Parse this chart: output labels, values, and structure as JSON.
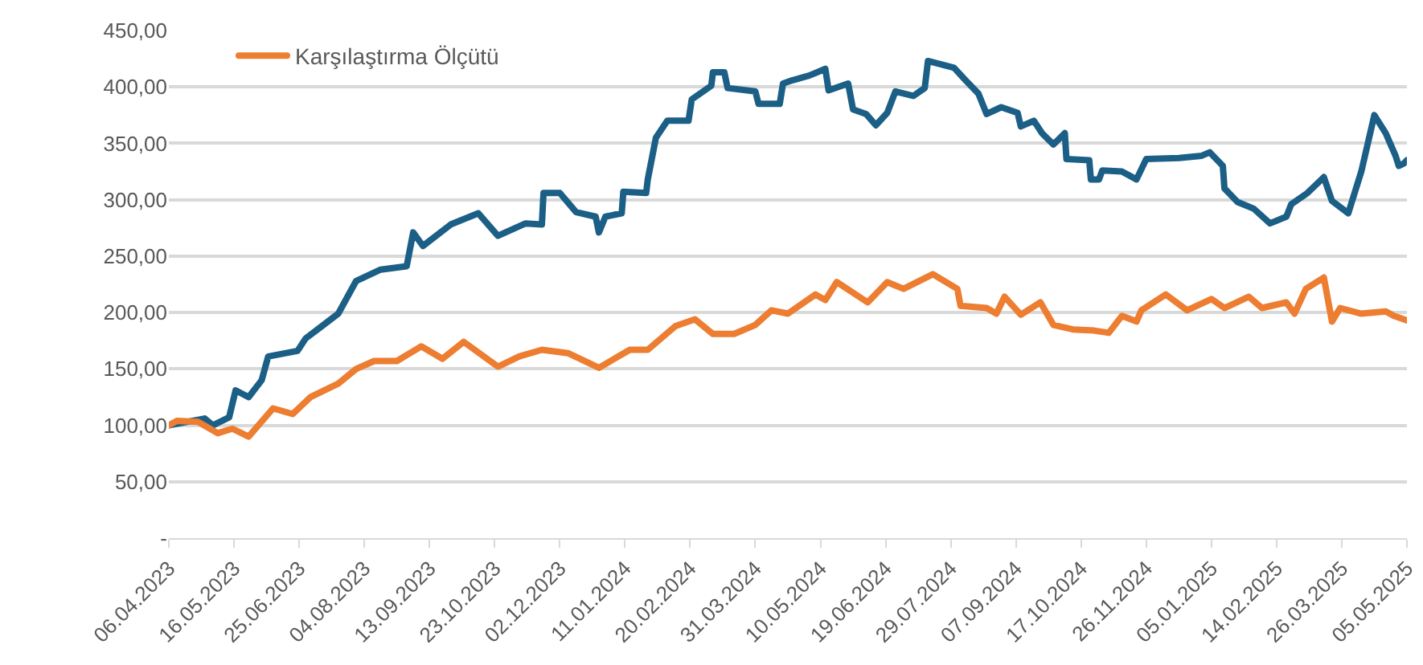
{
  "chart_data": {
    "type": "line",
    "line_style": "solid",
    "marker": "none",
    "grid": "y",
    "legend": "top left",
    "xlim": [
      "2023-04-06",
      "2025-05-05"
    ],
    "xticks": [
      {
        "value": "2023-04-06",
        "label": "06.04.2023"
      },
      {
        "value": "2023-05-16",
        "label": "16.05.2023"
      },
      {
        "value": "2023-06-25",
        "label": "25.06.2023"
      },
      {
        "value": "2023-08-04",
        "label": "04.08.2023"
      },
      {
        "value": "2023-09-13",
        "label": "13.09.2023"
      },
      {
        "value": "2023-10-23",
        "label": "23.10.2023"
      },
      {
        "value": "2023-12-02",
        "label": "02.12.2023"
      },
      {
        "value": "2024-01-11",
        "label": "11.01.2024"
      },
      {
        "value": "2024-02-20",
        "label": "20.02.2024"
      },
      {
        "value": "2024-03-31",
        "label": "31.03.2024"
      },
      {
        "value": "2024-05-10",
        "label": "10.05.2024"
      },
      {
        "value": "2024-06-19",
        "label": "19.06.2024"
      },
      {
        "value": "2024-07-29",
        "label": "29.07.2024"
      },
      {
        "value": "2024-09-07",
        "label": "07.09.2024"
      },
      {
        "value": "2024-10-17",
        "label": "17.10.2024"
      },
      {
        "value": "2024-11-26",
        "label": "26.11.2024"
      },
      {
        "value": "2025-01-05",
        "label": "05.01.2025"
      },
      {
        "value": "2025-02-14",
        "label": "14.02.2025"
      },
      {
        "value": "2025-03-26",
        "label": "26.03.2025"
      },
      {
        "value": "2025-05-05",
        "label": "05.05.2025"
      }
    ],
    "ylim": [
      0,
      450
    ],
    "yticks": [
      {
        "value": 0,
        "label": "-"
      },
      {
        "value": 50,
        "label": "50,00"
      },
      {
        "value": 100,
        "label": "100,00"
      },
      {
        "value": 150,
        "label": "150,00"
      },
      {
        "value": 200,
        "label": "200,00"
      },
      {
        "value": 250,
        "label": "250,00"
      },
      {
        "value": 300,
        "label": "300,00"
      },
      {
        "value": 350,
        "label": "350,00"
      },
      {
        "value": 400,
        "label": "400,00"
      },
      {
        "value": 450,
        "label": "450,00"
      }
    ],
    "series": [
      {
        "color": "#1b5f86",
        "x": [
          "2023-04-06",
          "2023-04-28",
          "2023-05-03",
          "2023-05-13",
          "2023-05-17",
          "2023-05-25",
          "2023-06-02",
          "2023-06-06",
          "2023-06-24",
          "2023-06-29",
          "2023-07-09",
          "2023-07-19",
          "2023-07-30",
          "2023-08-14",
          "2023-08-30",
          "2023-09-03",
          "2023-09-09",
          "2023-09-26",
          "2023-10-13",
          "2023-10-25",
          "2023-11-11",
          "2023-11-21",
          "2023-11-22",
          "2023-12-02",
          "2023-12-12",
          "2023-12-24",
          "2023-12-26",
          "2023-12-30",
          "2024-01-09",
          "2024-01-10",
          "2024-01-24",
          "2024-01-25",
          "2024-01-30",
          "2024-02-06",
          "2024-02-19",
          "2024-02-21",
          "2024-03-04",
          "2024-03-05",
          "2024-03-12",
          "2024-03-14",
          "2024-03-31",
          "2024-04-02",
          "2024-04-15",
          "2024-04-17",
          "2024-04-23",
          "2024-05-03",
          "2024-05-13",
          "2024-05-15",
          "2024-05-27",
          "2024-05-30",
          "2024-06-07",
          "2024-06-13",
          "2024-06-20",
          "2024-06-25",
          "2024-07-06",
          "2024-07-13",
          "2024-07-15",
          "2024-07-31",
          "2024-08-07",
          "2024-08-15",
          "2024-08-20",
          "2024-08-29",
          "2024-09-08",
          "2024-09-10",
          "2024-09-18",
          "2024-09-23",
          "2024-09-30",
          "2024-10-07",
          "2024-10-08",
          "2024-10-22",
          "2024-10-23",
          "2024-10-28",
          "2024-10-30",
          "2024-11-11",
          "2024-11-20",
          "2024-11-26",
          "2024-12-16",
          "2024-12-30",
          "2025-01-04",
          "2025-01-12",
          "2025-01-13",
          "2025-01-21",
          "2025-01-31",
          "2025-02-10",
          "2025-02-20",
          "2025-02-23",
          "2025-03-05",
          "2025-03-15",
          "2025-03-20",
          "2025-03-30",
          "2025-04-07",
          "2025-04-15",
          "2025-04-22",
          "2025-04-28",
          "2025-04-30",
          "2025-05-03",
          "2025-05-05"
        ],
        "values": [
          100,
          106,
          100,
          107,
          131,
          125,
          140,
          161,
          166,
          177,
          188,
          199,
          228,
          238,
          241,
          271,
          259,
          278,
          288,
          268,
          279,
          278,
          306,
          306,
          289,
          285,
          271,
          285,
          288,
          307,
          306,
          318,
          355,
          370,
          370,
          389,
          401,
          413,
          413,
          399,
          396,
          385,
          385,
          403,
          406,
          410,
          416,
          397,
          403,
          380,
          376,
          366,
          377,
          396,
          392,
          399,
          423,
          417,
          406,
          394,
          376,
          382,
          377,
          365,
          370,
          359,
          349,
          359,
          336,
          335,
          318,
          318,
          326,
          325,
          318,
          336,
          337,
          339,
          342,
          330,
          310,
          298,
          292,
          279,
          285,
          296,
          306,
          320,
          299,
          288,
          325,
          375,
          359,
          339,
          330,
          332,
          335
        ]
      },
      {
        "name": "Karşılaştırma Ölçütü",
        "color": "#ed7d31",
        "x": [
          "2023-04-06",
          "2023-04-11",
          "2023-04-24",
          "2023-05-06",
          "2023-05-15",
          "2023-05-25",
          "2023-06-09",
          "2023-06-21",
          "2023-07-02",
          "2023-07-19",
          "2023-07-30",
          "2023-08-10",
          "2023-08-24",
          "2023-09-08",
          "2023-09-21",
          "2023-10-04",
          "2023-10-25",
          "2023-11-07",
          "2023-11-21",
          "2023-12-07",
          "2023-12-26",
          "2024-01-14",
          "2024-01-25",
          "2024-02-11",
          "2024-02-23",
          "2024-03-05",
          "2024-03-18",
          "2024-03-31",
          "2024-04-10",
          "2024-04-20",
          "2024-04-23",
          "2024-05-07",
          "2024-05-13",
          "2024-05-20",
          "2024-06-08",
          "2024-06-20",
          "2024-06-30",
          "2024-07-18",
          "2024-08-02",
          "2024-08-04",
          "2024-08-20",
          "2024-08-26",
          "2024-08-31",
          "2024-09-10",
          "2024-09-22",
          "2024-09-30",
          "2024-10-12",
          "2024-10-25",
          "2024-11-03",
          "2024-11-11",
          "2024-11-20",
          "2024-11-23",
          "2024-12-08",
          "2024-12-21",
          "2025-01-05",
          "2025-01-13",
          "2025-01-28",
          "2025-02-05",
          "2025-02-20",
          "2025-02-25",
          "2025-03-04",
          "2025-03-15",
          "2025-03-20",
          "2025-03-25",
          "2025-04-07",
          "2025-04-22",
          "2025-04-27",
          "2025-05-03",
          "2025-05-05"
        ],
        "values": [
          100,
          104,
          103,
          93,
          97,
          90,
          115,
          110,
          125,
          137,
          150,
          157,
          157,
          170,
          159,
          174,
          152,
          161,
          167,
          164,
          151,
          167,
          167,
          188,
          194,
          181,
          181,
          189,
          202,
          199,
          202,
          216,
          211,
          227,
          209,
          227,
          221,
          234,
          221,
          206,
          204,
          199,
          214,
          198,
          209,
          189,
          185,
          184,
          182,
          197,
          192,
          202,
          216,
          202,
          212,
          204,
          214,
          204,
          209,
          199,
          221,
          231,
          192,
          204,
          199,
          201,
          197,
          194,
          193
        ]
      }
    ]
  }
}
